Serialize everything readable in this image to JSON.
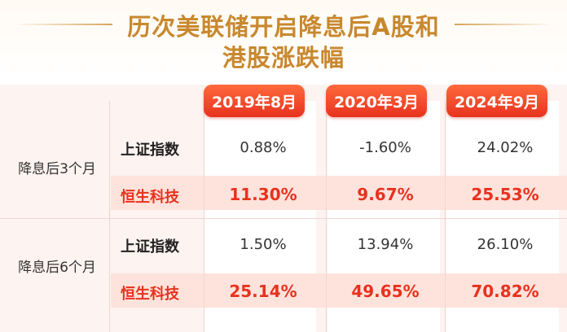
{
  "title": {
    "line1": "历次美联储开启降息后A股和",
    "line2": "港股涨跌幅"
  },
  "columns": [
    "2019年8月",
    "2020年3月",
    "2024年9月"
  ],
  "groups": [
    {
      "label": "降息后3个月",
      "rows": [
        {
          "index": "上证指数",
          "values": [
            "0.88%",
            "-1.60%",
            "24.02%"
          ],
          "highlight": false
        },
        {
          "index": "恒生科技",
          "values": [
            "11.30%",
            "9.67%",
            "25.53%"
          ],
          "highlight": true
        }
      ]
    },
    {
      "label": "降息后6个月",
      "rows": [
        {
          "index": "上证指数",
          "values": [
            "1.50%",
            "13.94%",
            "26.10%"
          ],
          "highlight": false
        },
        {
          "index": "恒生科技",
          "values": [
            "25.14%",
            "49.65%",
            "70.82%"
          ],
          "highlight": true
        }
      ]
    }
  ],
  "colors": {
    "title": "#c8882e",
    "accent_red": "#e8321e",
    "highlight_row": "#fde3dc",
    "panel": "#fdf3f1"
  }
}
